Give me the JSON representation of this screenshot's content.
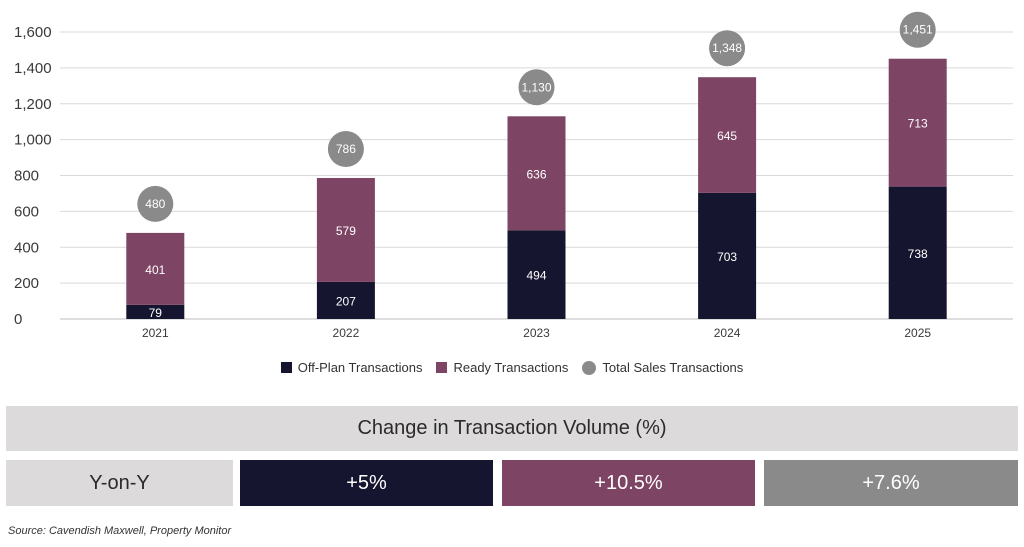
{
  "chart_data": {
    "type": "bar",
    "stacked": true,
    "categories": [
      "2021",
      "2022",
      "2023",
      "2024",
      "2025"
    ],
    "series": [
      {
        "name": "Off-Plan Transactions",
        "values": [
          79,
          207,
          494,
          703,
          738
        ],
        "color": "#15152f"
      },
      {
        "name": "Ready Transactions",
        "values": [
          401,
          579,
          636,
          645,
          713
        ],
        "color": "#7d4463"
      }
    ],
    "totals": {
      "name": "Total Sales Transactions",
      "values": [
        "480",
        "786",
        "1,130",
        "1,348",
        "1,451"
      ],
      "color": "#8a8a8a"
    },
    "ylim": [
      0,
      1600
    ],
    "yticks": [
      "0",
      "200",
      "400",
      "600",
      "800",
      "1,000",
      "1,200",
      "1,400",
      "1,600"
    ],
    "grid": true,
    "legend_position": "bottom"
  },
  "legend": {
    "off_plan": "Off-Plan Transactions",
    "ready": "Ready Transactions",
    "total": "Total Sales Transactions"
  },
  "change_table": {
    "title": "Change in Transaction Volume (%)",
    "row_label": "Y-on-Y",
    "values": [
      "+5%",
      "+10.5%",
      "+7.6%"
    ]
  },
  "source": "Source: Cavendish Maxwell, Property Monitor"
}
